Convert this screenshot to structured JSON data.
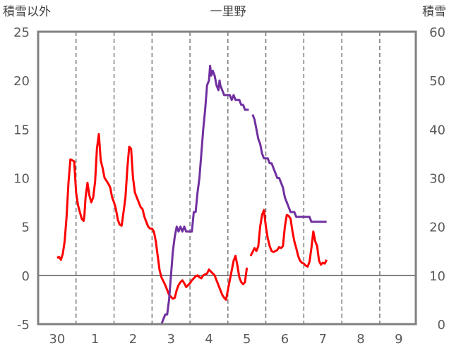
{
  "chart_data": {
    "type": "line",
    "title": "一里野",
    "ylabel_left": "積雪以外",
    "ylabel_right": "積雪",
    "x_range": [
      29.5,
      9.45
    ],
    "x_tick_labels": [
      "30",
      "1",
      "2",
      "3",
      "4",
      "5",
      "6",
      "7",
      "8",
      "9"
    ],
    "ylim_left": [
      -5,
      25
    ],
    "y_ticks_left": [
      "-5",
      "0",
      "5",
      "10",
      "15",
      "20",
      "25"
    ],
    "ylim_right": [
      0,
      60
    ],
    "y_ticks_right": [
      "0",
      "10",
      "20",
      "30",
      "40",
      "50",
      "60"
    ],
    "grid": "vertical dashed at day boundaries",
    "colors": {
      "temperature": "#ff0000",
      "snow": "#7030a0",
      "frame": "#808080"
    },
    "series": [
      {
        "color": "#ff0000",
        "axis": "left",
        "segments": [
          [
            [
              0,
              1.8
            ],
            [
              0.05,
              1.9
            ],
            [
              0.1,
              1.6
            ],
            [
              0.15,
              2.2
            ],
            [
              0.2,
              3.5
            ],
            [
              0.25,
              6.0
            ],
            [
              0.3,
              9.5
            ],
            [
              0.35,
              11.9
            ],
            [
              0.4,
              11.8
            ],
            [
              0.45,
              11.7
            ],
            [
              0.5,
              8.5
            ],
            [
              0.55,
              7.2
            ],
            [
              0.6,
              6.5
            ],
            [
              0.65,
              5.8
            ],
            [
              0.7,
              5.6
            ],
            [
              0.72,
              6.2
            ],
            [
              0.75,
              8.0
            ],
            [
              0.8,
              9.5
            ],
            [
              0.85,
              8.2
            ],
            [
              0.9,
              7.5
            ],
            [
              0.95,
              8.0
            ],
            [
              1.0,
              9.6
            ],
            [
              1.05,
              13.0
            ],
            [
              1.1,
              14.5
            ],
            [
              1.15,
              11.8
            ],
            [
              1.2,
              11.0
            ],
            [
              1.25,
              10.0
            ],
            [
              1.3,
              9.7
            ],
            [
              1.35,
              9.4
            ],
            [
              1.4,
              9.0
            ],
            [
              1.45,
              8.0
            ],
            [
              1.5,
              7.5
            ],
            [
              1.55,
              6.8
            ],
            [
              1.6,
              5.7
            ],
            [
              1.65,
              5.2
            ],
            [
              1.7,
              5.1
            ],
            [
              1.75,
              6.5
            ],
            [
              1.8,
              8.0
            ],
            [
              1.85,
              11.0
            ],
            [
              1.9,
              13.2
            ],
            [
              1.95,
              13.0
            ],
            [
              2.0,
              10.0
            ],
            [
              2.05,
              8.5
            ],
            [
              2.1,
              8.0
            ],
            [
              2.15,
              7.5
            ],
            [
              2.2,
              7.0
            ],
            [
              2.25,
              6.8
            ],
            [
              2.3,
              6.0
            ],
            [
              2.35,
              5.5
            ],
            [
              2.4,
              5.0
            ],
            [
              2.45,
              4.8
            ],
            [
              2.5,
              4.8
            ],
            [
              2.55,
              4.5
            ],
            [
              2.6,
              3.5
            ],
            [
              2.65,
              2.0
            ],
            [
              2.7,
              0.5
            ],
            [
              2.75,
              -0.2
            ],
            [
              2.8,
              -0.6
            ],
            [
              2.85,
              -1.0
            ],
            [
              2.9,
              -1.5
            ],
            [
              2.95,
              -2.0
            ],
            [
              3.0,
              -2.2
            ],
            [
              3.05,
              -2.4
            ],
            [
              3.1,
              -2.3
            ],
            [
              3.15,
              -1.5
            ],
            [
              3.2,
              -1.0
            ],
            [
              3.25,
              -0.7
            ],
            [
              3.3,
              -0.5
            ],
            [
              3.35,
              -0.8
            ],
            [
              3.4,
              -1.2
            ],
            [
              3.45,
              -1.0
            ],
            [
              3.5,
              -0.8
            ],
            [
              3.55,
              -0.5
            ],
            [
              3.6,
              -0.3
            ],
            [
              3.65,
              -0.1
            ],
            [
              3.7,
              0.0
            ],
            [
              3.75,
              -0.2
            ],
            [
              3.8,
              -0.3
            ],
            [
              3.85,
              0.0
            ],
            [
              3.9,
              0.1
            ],
            [
              3.95,
              0.2
            ],
            [
              4.0,
              0.6
            ],
            [
              4.05,
              0.4
            ],
            [
              4.1,
              0.2
            ],
            [
              4.15,
              0.0
            ],
            [
              4.2,
              -0.5
            ],
            [
              4.25,
              -1.0
            ],
            [
              4.3,
              -1.5
            ],
            [
              4.35,
              -2.0
            ],
            [
              4.4,
              -2.3
            ],
            [
              4.45,
              -2.5
            ],
            [
              4.5,
              -1.5
            ],
            [
              4.55,
              -0.5
            ],
            [
              4.6,
              0.5
            ],
            [
              4.65,
              1.5
            ],
            [
              4.7,
              2.0
            ],
            [
              4.75,
              1.0
            ],
            [
              4.8,
              -0.2
            ],
            [
              4.85,
              -0.7
            ],
            [
              4.9,
              -0.9
            ],
            [
              4.95,
              -0.7
            ],
            [
              5.0,
              0.8
            ]
          ],
          [
            [
              5.1,
              2.0
            ],
            [
              5.15,
              2.4
            ],
            [
              5.2,
              2.8
            ],
            [
              5.25,
              2.5
            ],
            [
              5.3,
              3.0
            ],
            [
              5.35,
              5.0
            ],
            [
              5.4,
              6.2
            ],
            [
              5.45,
              6.7
            ],
            [
              5.5,
              5.0
            ],
            [
              5.55,
              3.8
            ],
            [
              5.6,
              3.0
            ],
            [
              5.65,
              2.5
            ],
            [
              5.7,
              2.4
            ],
            [
              5.75,
              2.5
            ],
            [
              5.8,
              2.6
            ],
            [
              5.85,
              2.9
            ],
            [
              5.9,
              2.8
            ],
            [
              5.95,
              3.0
            ],
            [
              6.0,
              5.0
            ],
            [
              6.05,
              6.2
            ],
            [
              6.1,
              6.1
            ],
            [
              6.15,
              5.8
            ],
            [
              6.2,
              4.5
            ],
            [
              6.25,
              3.5
            ],
            [
              6.3,
              2.8
            ],
            [
              6.35,
              2.0
            ],
            [
              6.4,
              1.5
            ],
            [
              6.45,
              1.3
            ],
            [
              6.5,
              1.2
            ],
            [
              6.55,
              1.0
            ],
            [
              6.6,
              0.9
            ],
            [
              6.65,
              1.4
            ],
            [
              6.7,
              2.8
            ],
            [
              6.75,
              4.5
            ],
            [
              6.8,
              3.5
            ],
            [
              6.85,
              3.0
            ],
            [
              6.9,
              1.5
            ],
            [
              6.95,
              1.1
            ],
            [
              7.0,
              1.3
            ],
            [
              7.05,
              1.2
            ],
            [
              7.1,
              1.6
            ]
          ]
        ]
      },
      {
        "color": "#7030a0",
        "axis": "right",
        "segments": [
          [
            [
              0,
              0
            ],
            [
              0.5,
              0
            ],
            [
              1.0,
              0
            ],
            [
              1.5,
              0
            ],
            [
              2.0,
              0
            ],
            [
              2.5,
              0
            ],
            [
              2.75,
              0
            ],
            [
              2.8,
              1
            ],
            [
              2.85,
              2
            ],
            [
              2.9,
              2
            ],
            [
              2.95,
              5
            ],
            [
              3.0,
              10
            ],
            [
              3.05,
              15
            ],
            [
              3.1,
              18
            ],
            [
              3.15,
              20
            ],
            [
              3.2,
              19
            ],
            [
              3.25,
              20
            ],
            [
              3.3,
              19
            ],
            [
              3.35,
              20
            ],
            [
              3.4,
              19
            ],
            [
              3.45,
              19
            ],
            [
              3.5,
              19
            ],
            [
              3.55,
              19
            ],
            [
              3.6,
              23
            ],
            [
              3.65,
              23
            ],
            [
              3.7,
              27
            ],
            [
              3.75,
              30
            ],
            [
              3.8,
              35
            ],
            [
              3.85,
              40
            ],
            [
              3.9,
              44
            ],
            [
              3.95,
              49
            ],
            [
              4.0,
              50
            ],
            [
              4.03,
              53
            ],
            [
              4.06,
              51
            ],
            [
              4.1,
              52
            ],
            [
              4.15,
              51
            ],
            [
              4.2,
              49
            ],
            [
              4.25,
              48
            ],
            [
              4.28,
              50
            ],
            [
              4.3,
              49
            ],
            [
              4.35,
              48
            ],
            [
              4.4,
              47
            ],
            [
              4.45,
              47
            ],
            [
              4.5,
              47
            ],
            [
              4.55,
              47
            ],
            [
              4.6,
              46
            ],
            [
              4.65,
              47
            ],
            [
              4.7,
              46
            ],
            [
              4.75,
              46
            ],
            [
              4.8,
              46
            ],
            [
              4.85,
              45
            ],
            [
              4.9,
              45
            ],
            [
              4.95,
              44
            ],
            [
              5.0,
              44
            ],
            [
              5.05,
              44
            ]
          ],
          [
            [
              5.15,
              43
            ],
            [
              5.2,
              42
            ],
            [
              5.25,
              40
            ],
            [
              5.3,
              38
            ],
            [
              5.35,
              37
            ],
            [
              5.4,
              35
            ],
            [
              5.45,
              34
            ],
            [
              5.5,
              34
            ],
            [
              5.55,
              34
            ],
            [
              5.6,
              33
            ],
            [
              5.65,
              33
            ],
            [
              5.7,
              32
            ],
            [
              5.75,
              31
            ],
            [
              5.8,
              30
            ],
            [
              5.85,
              30
            ],
            [
              5.9,
              29
            ],
            [
              5.95,
              28
            ],
            [
              6.0,
              26
            ],
            [
              6.05,
              25
            ],
            [
              6.1,
              24
            ],
            [
              6.15,
              23
            ],
            [
              6.2,
              23
            ],
            [
              6.25,
              23
            ],
            [
              6.3,
              22
            ],
            [
              6.35,
              22
            ],
            [
              6.4,
              22
            ],
            [
              6.45,
              22
            ],
            [
              6.5,
              22
            ],
            [
              6.55,
              22
            ],
            [
              6.6,
              22
            ],
            [
              6.65,
              22
            ],
            [
              6.7,
              21
            ],
            [
              6.75,
              21
            ],
            [
              6.8,
              21
            ],
            [
              6.85,
              21
            ],
            [
              6.9,
              21
            ],
            [
              6.95,
              21
            ],
            [
              7.0,
              21
            ],
            [
              7.05,
              21
            ],
            [
              7.1,
              21
            ]
          ]
        ]
      }
    ]
  }
}
